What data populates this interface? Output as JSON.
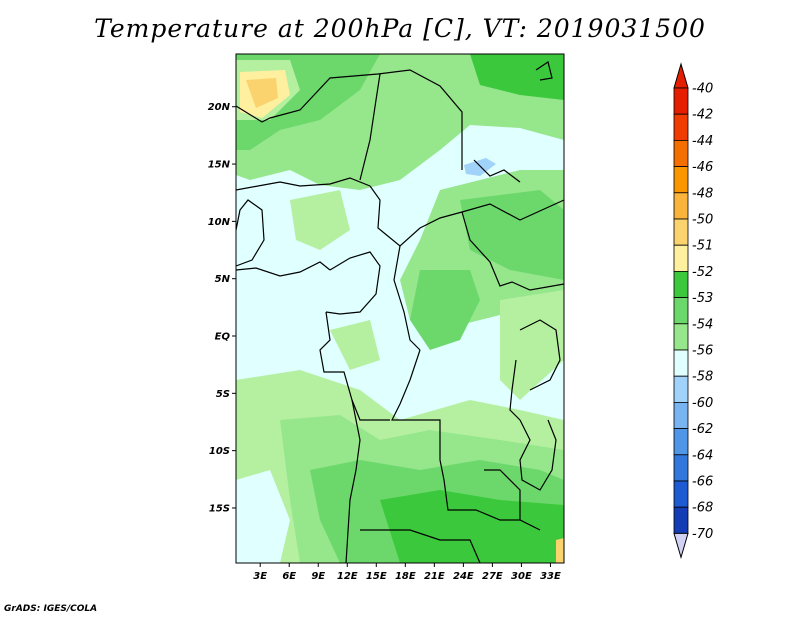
{
  "title": "Temperature at 200hPa [C], VT: 2019031500",
  "credit": "GrADS: IGES/COLA",
  "map": {
    "lat_ticks": [
      {
        "value": 20,
        "label": "20N"
      },
      {
        "value": 15,
        "label": "15N"
      },
      {
        "value": 10,
        "label": "10N"
      },
      {
        "value": 5,
        "label": "5N"
      },
      {
        "value": 0,
        "label": "EQ"
      },
      {
        "value": -5,
        "label": "5S"
      },
      {
        "value": -10,
        "label": "10S"
      },
      {
        "value": -15,
        "label": "15S"
      }
    ],
    "lon_ticks": [
      {
        "value": 3,
        "label": "3E"
      },
      {
        "value": 6,
        "label": "6E"
      },
      {
        "value": 9,
        "label": "9E"
      },
      {
        "value": 12,
        "label": "12E"
      },
      {
        "value": 15,
        "label": "15E"
      },
      {
        "value": 18,
        "label": "18E"
      },
      {
        "value": 21,
        "label": "21E"
      },
      {
        "value": 24,
        "label": "24E"
      },
      {
        "value": 27,
        "label": "27E"
      },
      {
        "value": 30,
        "label": "30E"
      },
      {
        "value": 33,
        "label": "33E"
      }
    ],
    "colors": {
      "lightest_cyan": "#e0ffff",
      "pale_green": "#b4f0a0",
      "light_green": "#96e68c",
      "mid_green": "#6cd86c",
      "green": "#3cc83c",
      "pale_yellow": "#fff0a0",
      "yellow": "#fad26e",
      "light_blue": "#a0d2fa",
      "border": "#000000"
    }
  },
  "colorbar": {
    "levels": [
      {
        "label": "-40",
        "color": "#e61e00"
      },
      {
        "label": "-42",
        "color": "#f03c00"
      },
      {
        "label": "-44",
        "color": "#f56e00"
      },
      {
        "label": "-46",
        "color": "#fa9600"
      },
      {
        "label": "-48",
        "color": "#fab43c"
      },
      {
        "label": "-50",
        "color": "#fad26e"
      },
      {
        "label": "-51",
        "color": "#fff0a0"
      },
      {
        "label": "-52",
        "color": "#3cc83c"
      },
      {
        "label": "-53",
        "color": "#6cd86c"
      },
      {
        "label": "-54",
        "color": "#96e68c"
      },
      {
        "label": "-56",
        "color": "#e0ffff"
      },
      {
        "label": "-58",
        "color": "#a0d2fa"
      },
      {
        "label": "-60",
        "color": "#78b4f0"
      },
      {
        "label": "-62",
        "color": "#5096e6"
      },
      {
        "label": "-64",
        "color": "#3278dc"
      },
      {
        "label": "-66",
        "color": "#1e5ad2"
      },
      {
        "label": "-68",
        "color": "#143cb4"
      },
      {
        "label": "-70",
        "color": "#0a1e8c"
      }
    ],
    "top_arrow_color": "#e61e00",
    "bottom_arrow_color": "#d2d2f5"
  }
}
